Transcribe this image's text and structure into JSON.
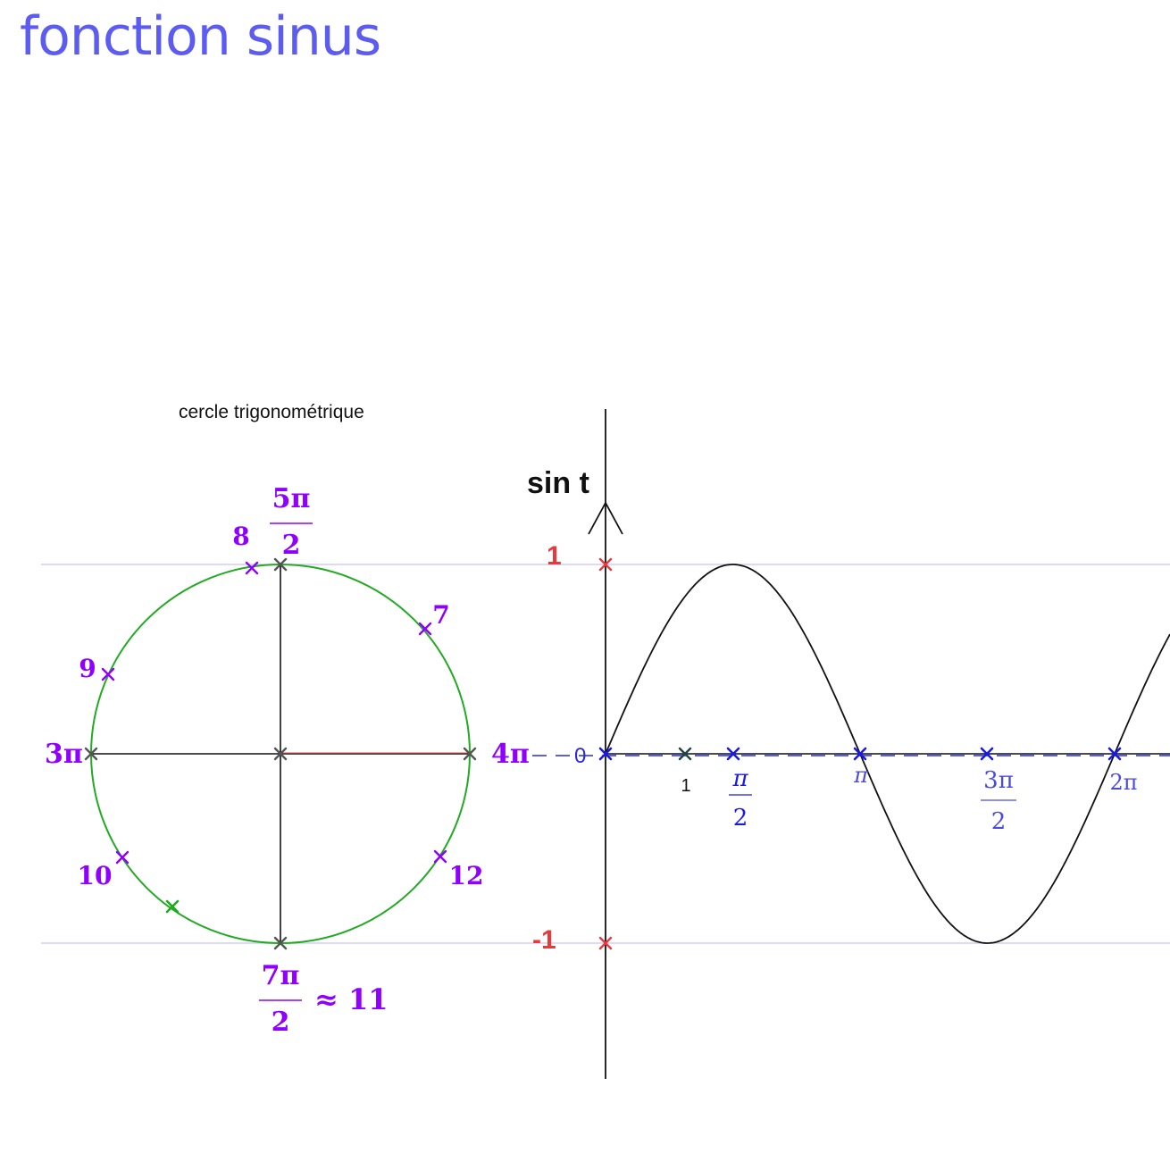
{
  "title": "fonction sinus",
  "circle_caption": "cercle trigonométrique",
  "y_axis_label": "sin t",
  "circle_labels": {
    "top_num": "5π",
    "top_den": "2",
    "bottom_num": "7π",
    "bottom_den": "2",
    "bottom_approx": "≈ 11",
    "left": "3π",
    "right": "4π",
    "pts": [
      "7",
      "8",
      "9",
      "10",
      "12"
    ]
  },
  "y_ticks": {
    "max": "1",
    "min": "-1",
    "origin": "0"
  },
  "x_tick_one": "1",
  "x_ticks": [
    {
      "num": "π",
      "den": "2"
    },
    {
      "num": "π",
      "den": ""
    },
    {
      "num": "3π",
      "den": "2"
    },
    {
      "num": "2π",
      "den": ""
    }
  ],
  "colors": {
    "title": "#5c5cf0",
    "purple": "#8f00ff",
    "red": "#e83a3a",
    "blue": "#1a1ae6",
    "blue_label": "#4a4ae0",
    "green": "#22aa22",
    "guide": "#cfcff5",
    "dark": "#555555"
  }
}
